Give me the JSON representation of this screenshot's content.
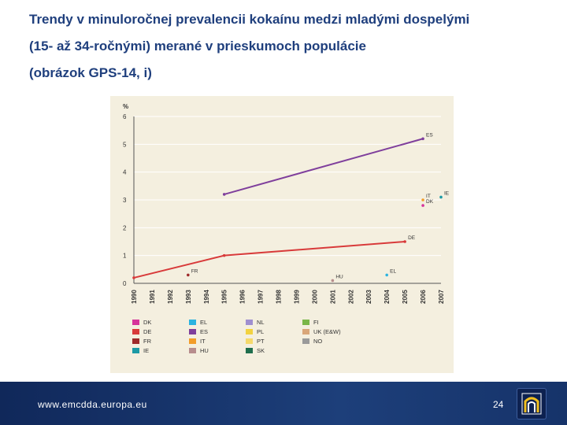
{
  "title": {
    "line1": "Trendy v minuloročnej prevalencii kokaínu medzi mladými dospelými",
    "line2": "(15- až 34-ročnými) merané v prieskumoch populácie",
    "line3": "(obrázok GPS-14, i)"
  },
  "footer": {
    "url": "www.emcdda.europa.eu",
    "page_number": "24"
  },
  "colors": {
    "title": "#1f3f7d",
    "chart_background": "#f4efdf",
    "footer_bar": "#1d3f7a"
  },
  "chart_data": {
    "type": "line",
    "ylabel": "%",
    "ylim": [
      0,
      6
    ],
    "yticks": [
      "0",
      "1",
      "2",
      "3",
      "4",
      "5",
      "6"
    ],
    "categories": [
      "1990",
      "1991",
      "1992",
      "1993",
      "1994",
      "1995",
      "1996",
      "1997",
      "1998",
      "1999",
      "2000",
      "2001",
      "2002",
      "2003",
      "2004",
      "2005",
      "2006",
      "2007"
    ],
    "legend_position": "bottom",
    "series": [
      {
        "name": "DK",
        "color": "#d6339a",
        "label": "DK",
        "values": [
          null,
          null,
          null,
          null,
          null,
          null,
          null,
          null,
          null,
          null,
          null,
          null,
          null,
          null,
          null,
          null,
          2.8,
          null
        ]
      },
      {
        "name": "DE",
        "color": "#d83a3a",
        "label": "DE",
        "values": [
          0.2,
          null,
          null,
          null,
          null,
          1.0,
          null,
          null,
          null,
          null,
          null,
          null,
          null,
          null,
          null,
          1.5,
          null,
          null
        ]
      },
      {
        "name": "FR",
        "color": "#9e2a2a",
        "label": "FR",
        "values": [
          null,
          null,
          null,
          0.3,
          null,
          null,
          null,
          null,
          null,
          null,
          null,
          null,
          null,
          null,
          null,
          null,
          null,
          null
        ]
      },
      {
        "name": "IE",
        "color": "#1c9aa5",
        "label": "IE",
        "values": [
          null,
          null,
          null,
          null,
          null,
          null,
          null,
          null,
          null,
          null,
          null,
          null,
          null,
          null,
          null,
          null,
          null,
          3.1
        ]
      },
      {
        "name": "EL",
        "color": "#2bb3e0",
        "label": "EL",
        "values": [
          null,
          null,
          null,
          null,
          null,
          null,
          null,
          null,
          null,
          null,
          null,
          null,
          null,
          null,
          0.3,
          null,
          null,
          null
        ]
      },
      {
        "name": "ES",
        "color": "#7f3f9c",
        "label": "ES",
        "values": [
          null,
          null,
          null,
          null,
          null,
          3.2,
          null,
          null,
          null,
          null,
          null,
          null,
          null,
          null,
          null,
          null,
          5.2,
          null
        ]
      },
      {
        "name": "IT",
        "color": "#f29d2a",
        "label": "IT",
        "values": [
          null,
          null,
          null,
          null,
          null,
          null,
          null,
          null,
          null,
          null,
          null,
          null,
          null,
          null,
          null,
          null,
          3.0,
          null
        ]
      },
      {
        "name": "HU",
        "color": "#b78d8d",
        "label": "HU",
        "values": [
          null,
          null,
          null,
          null,
          null,
          null,
          null,
          null,
          null,
          null,
          null,
          0.1,
          null,
          null,
          null,
          null,
          null,
          null
        ]
      },
      {
        "name": "NL",
        "color": "#9f8fd0",
        "label": "NL",
        "values": [
          null,
          null,
          null,
          null,
          null,
          null,
          null,
          null,
          null,
          null,
          null,
          null,
          null,
          null,
          null,
          null,
          null,
          null
        ]
      },
      {
        "name": "PL",
        "color": "#f2d240",
        "label": "PL",
        "values": [
          null,
          null,
          null,
          null,
          null,
          null,
          null,
          null,
          null,
          null,
          null,
          null,
          null,
          null,
          null,
          null,
          null,
          null
        ]
      },
      {
        "name": "PT",
        "color": "#f5d96b",
        "label": "PT",
        "values": [
          null,
          null,
          null,
          null,
          null,
          null,
          null,
          null,
          null,
          null,
          null,
          null,
          null,
          null,
          null,
          null,
          null,
          null
        ]
      },
      {
        "name": "SK",
        "color": "#1f6e4d",
        "label": "SK",
        "values": [
          null,
          null,
          null,
          null,
          null,
          null,
          null,
          null,
          null,
          null,
          null,
          null,
          null,
          null,
          null,
          null,
          null,
          null
        ]
      },
      {
        "name": "FI",
        "color": "#7ab648",
        "label": "FI",
        "values": [
          null,
          null,
          null,
          null,
          null,
          null,
          null,
          null,
          null,
          null,
          null,
          null,
          null,
          null,
          null,
          null,
          null,
          null
        ]
      },
      {
        "name": "UK (E&W)",
        "color": "#d9a679",
        "label": "UK",
        "values": [
          null,
          null,
          null,
          null,
          null,
          null,
          null,
          null,
          null,
          null,
          null,
          null,
          null,
          null,
          null,
          null,
          null,
          null
        ]
      },
      {
        "name": "NO",
        "color": "#9a9a9a",
        "label": "NO",
        "values": [
          null,
          null,
          null,
          null,
          null,
          null,
          null,
          null,
          null,
          null,
          null,
          null,
          null,
          null,
          null,
          null,
          null,
          null
        ]
      }
    ]
  }
}
